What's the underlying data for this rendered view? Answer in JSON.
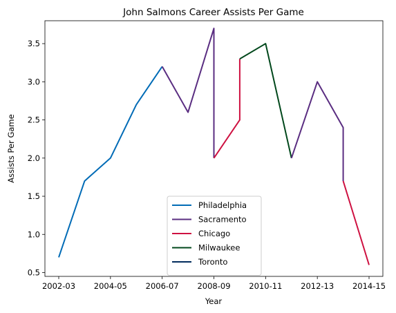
{
  "chart_data": {
    "type": "line",
    "title": "John Salmons Career Assists Per Game",
    "xlabel": "Year",
    "ylabel": "Assists Per Game",
    "xlim": [
      "2002-03",
      "2014-15"
    ],
    "ylim": [
      0.45,
      3.8
    ],
    "x_ticks": [
      "2002-03",
      "2004-05",
      "2006-07",
      "2008-09",
      "2010-11",
      "2012-13",
      "2014-15"
    ],
    "y_ticks": [
      "0.5",
      "1.0",
      "1.5",
      "2.0",
      "2.5",
      "3.0",
      "3.5"
    ],
    "grid": false,
    "legend_position": "lower-center",
    "series": [
      {
        "name": "Philadelphia",
        "color": "#006BB6",
        "points": [
          [
            "2002-03",
            0.7
          ],
          [
            "2003-04",
            1.7
          ],
          [
            "2004-05",
            2.0
          ],
          [
            "2005-06",
            2.7
          ],
          [
            "2006-07",
            3.2
          ]
        ]
      },
      {
        "name": "Sacramento",
        "color": "#5A2D81",
        "points": [
          [
            "2006-07",
            3.2
          ],
          [
            "2007-08",
            2.6
          ],
          [
            "2008-09",
            3.7
          ],
          [
            "2008-09",
            2.0
          ]
        ]
      },
      {
        "name": "Chicago",
        "color": "#CE1141",
        "points": [
          [
            "2008-09",
            2.0
          ],
          [
            "2009-10",
            2.5
          ],
          [
            "2009-10",
            3.3
          ]
        ]
      },
      {
        "name": "Milwaukee",
        "color": "#00471B",
        "points": [
          [
            "2009-10",
            3.3
          ],
          [
            "2010-11",
            3.5
          ],
          [
            "2011-12",
            2.0
          ]
        ]
      },
      {
        "name": "Sacramento",
        "color": "#5A2D81",
        "in_legend": false,
        "points": [
          [
            "2011-12",
            2.0
          ],
          [
            "2012-13",
            3.0
          ],
          [
            "2013-14",
            2.4
          ],
          [
            "2013-14",
            1.7
          ]
        ]
      },
      {
        "name": "Chicago",
        "color": "#CE1141",
        "in_legend": false,
        "points": [
          [
            "2013-14",
            1.7
          ],
          [
            "2014-15",
            0.6
          ]
        ]
      },
      {
        "name": "Toronto",
        "color": "#002B5C",
        "points": []
      }
    ]
  }
}
